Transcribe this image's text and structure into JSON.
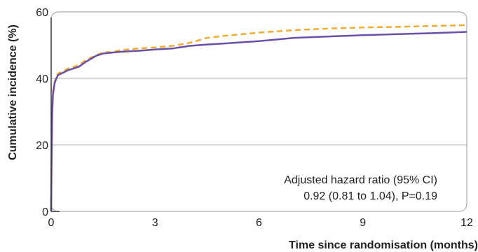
{
  "chart_data": {
    "type": "line",
    "title": "",
    "xlabel": "Time since randomisation (months)",
    "ylabel": "Cumulative incidence (%)",
    "xlim": [
      0,
      12
    ],
    "ylim": [
      0,
      60
    ],
    "xticks": [
      "0",
      "3",
      "6",
      "9",
      "12"
    ],
    "yticks": [
      "0",
      "20",
      "40",
      "60"
    ],
    "grid": "horizontal",
    "legend": "none",
    "annotation": {
      "line1": "Adjusted hazard ratio (95% CI)",
      "line2": "0.92 (0.81 to 1.04), P=0.19"
    },
    "series": [
      {
        "color": "#f0ad30",
        "style": "dashed",
        "x": [
          0,
          0.01,
          0.03,
          0.05,
          0.1,
          0.15,
          0.2,
          0.3,
          0.5,
          0.8,
          1.0,
          1.3,
          1.5,
          1.8,
          2.0,
          2.5,
          3.0,
          3.5,
          4.0,
          4.5,
          5.0,
          6.0,
          7.0,
          8.0,
          9.0,
          10.0,
          11.0,
          12.0
        ],
        "y": [
          0,
          14,
          30,
          36,
          39,
          40.5,
          41.5,
          42,
          43,
          44,
          45.5,
          47,
          47.8,
          48,
          48.5,
          49,
          49.3,
          49.8,
          50.7,
          52.2,
          52.8,
          53.8,
          54.5,
          55,
          55.3,
          55.5,
          55.8,
          56
        ]
      },
      {
        "color": "#6a4fa8",
        "style": "solid",
        "x": [
          0,
          0.01,
          0.03,
          0.05,
          0.1,
          0.15,
          0.2,
          0.3,
          0.5,
          0.8,
          1.0,
          1.3,
          1.5,
          1.8,
          2.0,
          2.5,
          3.0,
          3.5,
          4.0,
          4.5,
          5.0,
          6.0,
          7.0,
          8.0,
          9.0,
          10.0,
          11.0,
          12.0
        ],
        "y": [
          0,
          13,
          29,
          35,
          38.5,
          40,
          41,
          41.5,
          42.5,
          43.5,
          45,
          46.8,
          47.5,
          47.8,
          48,
          48.3,
          48.7,
          49,
          49.8,
          50.2,
          50.5,
          51.2,
          52.2,
          52.6,
          53,
          53.3,
          53.6,
          54
        ]
      }
    ]
  }
}
